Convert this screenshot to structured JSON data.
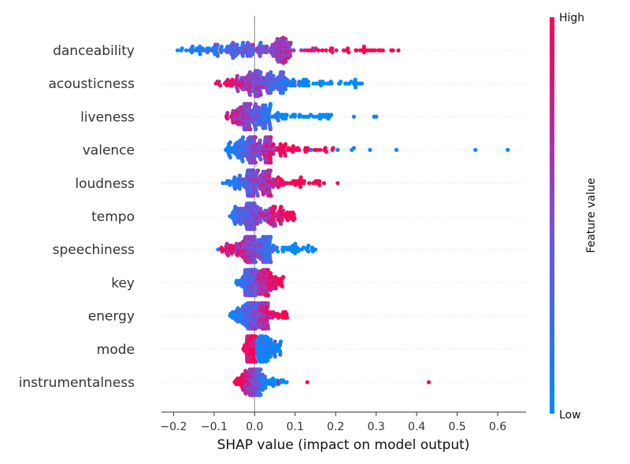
{
  "chart_data": {
    "type": "scatter",
    "subtype": "shap-beeswarm",
    "title": "",
    "xlabel": "SHAP value (impact on model output)",
    "xlim": [
      -0.23,
      0.67
    ],
    "x_ticks": [
      -0.2,
      -0.1,
      0.0,
      0.1,
      0.2,
      0.3,
      0.4,
      0.5,
      0.6
    ],
    "x_tick_labels": [
      "−0.2",
      "−0.1",
      "0.0",
      "0.1",
      "0.2",
      "0.3",
      "0.4",
      "0.5",
      "0.6"
    ],
    "colorbar": {
      "label": "Feature value",
      "high_label": "High",
      "low_label": "Low",
      "low_color": "#008bfb",
      "high_color": "#ff0052"
    },
    "features": [
      {
        "name": "danceability",
        "min": -0.19,
        "max": 0.355,
        "q1": -0.09,
        "median": 0.02,
        "q3": 0.08,
        "outliers": [
          {
            "x": 0.25,
            "v": 0.95
          },
          {
            "x": 0.29,
            "v": 0.95
          },
          {
            "x": 0.355,
            "v": 0.95
          },
          {
            "x": -0.19,
            "v": 0.05
          },
          {
            "x": 0.22,
            "v": 0.9
          }
        ]
      },
      {
        "name": "acousticness",
        "min": -0.1,
        "max": 0.265,
        "q1": -0.02,
        "median": 0.01,
        "q3": 0.07,
        "outliers": [
          {
            "x": 0.21,
            "v": 0.05
          },
          {
            "x": 0.245,
            "v": 0.05
          },
          {
            "x": 0.265,
            "v": 0.05
          },
          {
            "x": 0.19,
            "v": 0.1
          }
        ]
      },
      {
        "name": "liveness",
        "min": -0.08,
        "max": 0.3,
        "q1": -0.03,
        "median": -0.01,
        "q3": 0.04,
        "outliers": [
          {
            "x": 0.245,
            "v": 0.05
          },
          {
            "x": 0.295,
            "v": 0.05
          },
          {
            "x": 0.3,
            "v": 0.1
          },
          {
            "x": 0.18,
            "v": 0.1
          }
        ]
      },
      {
        "name": "valence",
        "min": -0.085,
        "max": 0.625,
        "q1": -0.03,
        "median": 0.0,
        "q3": 0.04,
        "outliers": [
          {
            "x": 0.14,
            "v": 0.05
          },
          {
            "x": 0.205,
            "v": 0.05
          },
          {
            "x": 0.24,
            "v": 0.05
          },
          {
            "x": 0.245,
            "v": 0.1
          },
          {
            "x": 0.285,
            "v": 0.05
          },
          {
            "x": 0.35,
            "v": 0.05
          },
          {
            "x": 0.545,
            "v": 0.05
          },
          {
            "x": 0.625,
            "v": 0.05
          }
        ]
      },
      {
        "name": "loudness",
        "min": -0.08,
        "max": 0.205,
        "q1": -0.02,
        "median": 0.0,
        "q3": 0.04,
        "outliers": [
          {
            "x": 0.155,
            "v": 0.95
          },
          {
            "x": 0.16,
            "v": 0.95
          },
          {
            "x": 0.205,
            "v": 0.95
          }
        ]
      },
      {
        "name": "tempo",
        "min": -0.065,
        "max": 0.1,
        "q1": -0.02,
        "median": 0.0,
        "q3": 0.05,
        "outliers": []
      },
      {
        "name": "speechiness",
        "min": -0.09,
        "max": 0.15,
        "q1": -0.03,
        "median": 0.0,
        "q3": 0.04,
        "outliers": [
          {
            "x": 0.15,
            "v": 0.05
          },
          {
            "x": -0.09,
            "v": 0.05
          }
        ]
      },
      {
        "name": "key",
        "min": -0.05,
        "max": 0.075,
        "q1": -0.015,
        "median": 0.0,
        "q3": 0.03,
        "outliers": []
      },
      {
        "name": "energy",
        "min": -0.065,
        "max": 0.08,
        "q1": -0.02,
        "median": 0.0,
        "q3": 0.03,
        "outliers": [
          {
            "x": 0.08,
            "v": 0.95
          }
        ]
      },
      {
        "name": "mode",
        "min": -0.03,
        "max": 0.065,
        "q1": -0.01,
        "median": 0.0,
        "q3": 0.03,
        "outliers": []
      },
      {
        "name": "instrumentalness",
        "min": -0.055,
        "max": 0.43,
        "q1": -0.015,
        "median": 0.0,
        "q3": 0.015,
        "outliers": [
          {
            "x": 0.045,
            "v": 0.95
          },
          {
            "x": 0.06,
            "v": 0.95
          },
          {
            "x": 0.13,
            "v": 0.95
          },
          {
            "x": 0.43,
            "v": 0.95
          }
        ]
      }
    ]
  }
}
